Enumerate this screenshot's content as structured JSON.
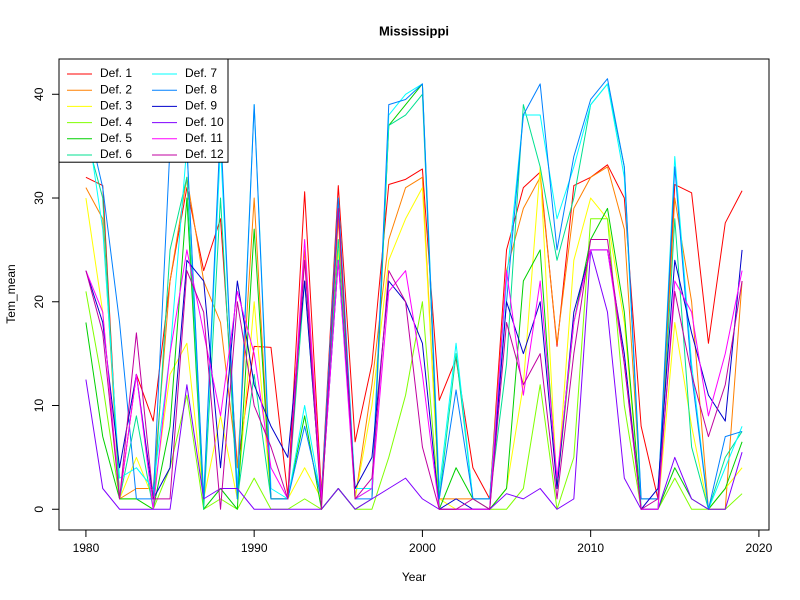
{
  "chart_data": {
    "type": "line",
    "title": "Mississippi",
    "x_label": "Year",
    "y_label": "Tem_mean",
    "x": [
      1980,
      1981,
      1982,
      1983,
      1984,
      1985,
      1986,
      1987,
      1988,
      1989,
      1990,
      1991,
      1992,
      1993,
      1994,
      1995,
      1996,
      1997,
      1998,
      1999,
      2000,
      2001,
      2002,
      2003,
      2004,
      2005,
      2006,
      2007,
      2008,
      2009,
      2010,
      2011,
      2012,
      2013,
      2014,
      2015,
      2016,
      2017,
      2018,
      2019
    ],
    "xlim": [
      1978.4,
      2020.6
    ],
    "xticks": [
      1980,
      1990,
      2000,
      2010,
      2020
    ],
    "ylim": [
      -2,
      43.4
    ],
    "yticks": [
      0,
      10,
      20,
      30,
      40
    ],
    "legend": "top-left",
    "series": [
      {
        "name": "Def. 1",
        "color": "#FF0000",
        "values": [
          32,
          31.2,
          1,
          13,
          8.5,
          22,
          31,
          23,
          28,
          4,
          15.7,
          15.6,
          1.3,
          30.6,
          1.5,
          31.2,
          6.5,
          14,
          31.3,
          31.8,
          32.8,
          10.5,
          14.5,
          4,
          1,
          25,
          31,
          32.5,
          15.7,
          31.2,
          32,
          33.2,
          30,
          8,
          1,
          31.3,
          30.5,
          16,
          27.6,
          30.7
        ]
      },
      {
        "name": "Def. 2",
        "color": "#FF8000",
        "values": [
          31,
          28,
          1,
          2,
          2,
          22,
          32,
          22,
          18,
          4,
          30,
          1,
          1,
          25,
          1,
          28,
          1,
          12,
          26,
          31,
          32,
          1,
          1,
          1,
          1,
          23,
          29,
          32,
          16,
          29,
          32,
          33,
          27,
          1,
          1,
          30,
          20,
          0,
          0,
          22
        ]
      },
      {
        "name": "Def. 3",
        "color": "#FFFF00",
        "values": [
          30,
          19,
          1,
          5,
          1,
          13,
          16,
          1,
          9,
          1,
          20,
          1,
          1,
          4,
          1,
          25,
          1,
          10,
          24,
          28,
          31,
          1,
          0,
          0,
          0,
          2,
          12,
          33,
          2,
          24,
          30,
          28,
          18,
          0,
          0,
          18,
          8,
          0,
          2,
          4
        ]
      },
      {
        "name": "Def. 4",
        "color": "#80FF00",
        "values": [
          21,
          12,
          1,
          1,
          0,
          4,
          11,
          0,
          1,
          0,
          3,
          0,
          0,
          1,
          0,
          2,
          0,
          0,
          5,
          11,
          20,
          0,
          0,
          0,
          0,
          0,
          2,
          12,
          0,
          5,
          28,
          28,
          10,
          0,
          0,
          3,
          0,
          0,
          0,
          1.5
        ]
      },
      {
        "name": "Def. 5",
        "color": "#00D000",
        "values": [
          18,
          7,
          1,
          1,
          0,
          8,
          30,
          0,
          2,
          0,
          27,
          1,
          1,
          9,
          0,
          2,
          0,
          1,
          37,
          39,
          41,
          0,
          4,
          1,
          0,
          2,
          22,
          25,
          2,
          18,
          26,
          29,
          19,
          0,
          0,
          4,
          1,
          0,
          2,
          6.5
        ]
      },
      {
        "name": "Def. 6",
        "color": "#00E090",
        "values": [
          36,
          30,
          1,
          9,
          0,
          25,
          32,
          0,
          30,
          1,
          13,
          1,
          1,
          22,
          1,
          26,
          1,
          2,
          37,
          38,
          40,
          1,
          15,
          1,
          1,
          14,
          39,
          33,
          24,
          30,
          39,
          41,
          33,
          0,
          0,
          28,
          6,
          0,
          5,
          7.5
        ]
      },
      {
        "name": "Def. 7",
        "color": "#00FFFF",
        "values": [
          38,
          27,
          3,
          4,
          2,
          15,
          35,
          1,
          35,
          2,
          39,
          2,
          1,
          10,
          1,
          30,
          2,
          2,
          38,
          40,
          41,
          2,
          16,
          1,
          1,
          22,
          38,
          38,
          28,
          33,
          39,
          41,
          32,
          1,
          1,
          34,
          14,
          0,
          4,
          8
        ]
      },
      {
        "name": "Def. 8",
        "color": "#0080FF",
        "values": [
          38,
          31,
          18,
          1,
          1,
          35,
          35,
          1,
          37,
          1,
          39,
          1,
          1,
          8,
          1,
          30,
          1,
          1,
          39,
          39.5,
          41,
          1,
          11.5,
          1,
          1,
          20,
          38,
          41,
          25,
          34,
          39.5,
          41.5,
          33,
          1,
          1,
          33,
          13,
          0,
          7,
          7.5
        ]
      },
      {
        "name": "Def. 9",
        "color": "#0000CC",
        "values": [
          23,
          18,
          4,
          13,
          1,
          4,
          24,
          22,
          4,
          22,
          12,
          8,
          5,
          22,
          1,
          24,
          2,
          5,
          22,
          20,
          16,
          0,
          1,
          0,
          0,
          20,
          15,
          20,
          2,
          19,
          25,
          25,
          15,
          0,
          2,
          24,
          17,
          11,
          8.5,
          25
        ]
      },
      {
        "name": "Def. 10",
        "color": "#8000FF",
        "values": [
          12.5,
          2,
          0,
          0,
          0,
          0,
          12,
          1,
          2,
          2,
          0,
          0,
          0,
          0,
          0,
          2,
          0,
          1,
          2,
          3,
          1,
          0,
          0,
          0,
          0,
          1.5,
          1,
          2,
          0,
          1,
          25,
          19,
          3,
          0,
          0,
          5,
          1,
          0,
          0,
          5.5
        ]
      },
      {
        "name": "Def. 11",
        "color": "#FF00FF",
        "values": [
          23,
          19,
          1,
          13,
          0,
          15,
          25,
          17,
          9,
          21,
          15,
          4,
          1,
          26,
          1,
          24,
          1,
          2,
          21,
          23,
          13,
          0,
          0,
          0,
          0,
          23,
          11,
          22,
          3,
          18,
          25,
          25,
          14,
          0,
          0,
          22,
          19,
          9,
          15,
          23
        ]
      },
      {
        "name": "Def. 12",
        "color": "#C000A0",
        "values": [
          23,
          17,
          1,
          17,
          1,
          1,
          23,
          19,
          0,
          20,
          10,
          6,
          1,
          24,
          0,
          29,
          1,
          3,
          23,
          20,
          6,
          0,
          0,
          1,
          0,
          18,
          12,
          15,
          1,
          15,
          26,
          26,
          14,
          0,
          1,
          21,
          13,
          7,
          12,
          22
        ]
      }
    ]
  }
}
